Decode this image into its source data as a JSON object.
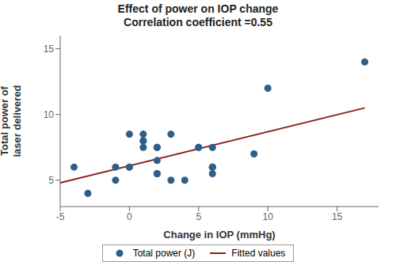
{
  "chart_data": {
    "type": "scatter",
    "title": "Effect of power on IOP change",
    "subtitle": "Correlation coefficient =0.55",
    "xlabel": "Change in IOP (mmHg)",
    "ylabel": "Total power of\nlaser delivered",
    "series": [
      {
        "name": "Total power (J)",
        "type": "scatter",
        "color": "#2e5f8a",
        "x": [
          -4,
          -3,
          -1,
          -1,
          0,
          0,
          0,
          1,
          1,
          1,
          1,
          2,
          2,
          2,
          2,
          2,
          3,
          3,
          4,
          5,
          5,
          6,
          6,
          6,
          6,
          6,
          9,
          10,
          17
        ],
        "values": [
          6,
          4,
          5,
          6,
          6,
          6,
          8.5,
          7.5,
          8,
          8,
          8.5,
          6.5,
          5.5,
          5.5,
          7.5,
          7.5,
          8.5,
          5,
          5,
          7.5,
          7.5,
          7.5,
          6,
          6,
          6,
          5.5,
          7,
          12,
          14
        ]
      },
      {
        "name": "Fitted values",
        "type": "line",
        "color": "#8b2020",
        "x": [
          -5,
          17
        ],
        "values": [
          4.8,
          10.5
        ]
      }
    ],
    "xlim": [
      -5,
      18
    ],
    "ylim": [
      3,
      16
    ],
    "xticks": [
      -5,
      0,
      5,
      10,
      15
    ],
    "yticks": [
      5,
      10,
      15
    ],
    "grid": false,
    "legend": "bottom"
  }
}
